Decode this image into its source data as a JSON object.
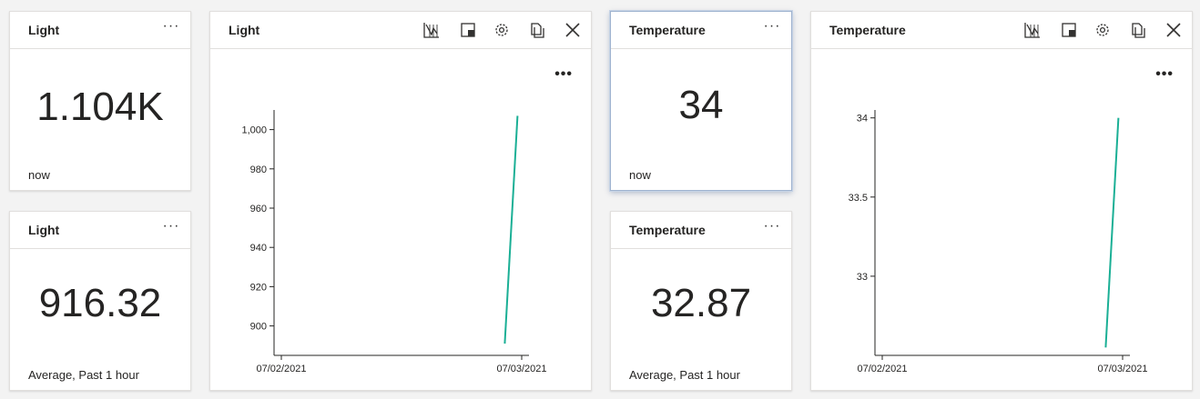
{
  "tiles": {
    "light_current": {
      "title": "Light",
      "value": "1.104K",
      "subtitle": "now",
      "more": "···"
    },
    "light_average": {
      "title": "Light",
      "value": "916.32",
      "subtitle": "Average, Past 1 hour",
      "more": "···"
    },
    "light_chart": {
      "title": "Light",
      "more": "•••"
    },
    "temp_current": {
      "title": "Temperature",
      "value": "34",
      "subtitle": "now",
      "more": "···"
    },
    "temp_average": {
      "title": "Temperature",
      "value": "32.87",
      "subtitle": "Average, Past 1 hour",
      "more": "···"
    },
    "temp_chart": {
      "title": "Temperature",
      "more": "•••"
    }
  },
  "toolbar_icons": [
    "chart-type-icon",
    "tile-size-icon",
    "settings-icon",
    "copy-icon",
    "close-icon"
  ],
  "chart_data": [
    {
      "type": "line",
      "x": [
        "07/02/2021",
        "07/03/2021"
      ],
      "series": [
        {
          "color": "#1aaf95",
          "points": [
            {
              "t": 0.905,
              "y": 891
            },
            {
              "t": 0.955,
              "y": 1007
            }
          ]
        }
      ],
      "yticks": [
        900,
        920,
        940,
        960,
        980,
        1000
      ],
      "ytick_labels": [
        "900",
        "920",
        "940",
        "960",
        "980",
        "1,000"
      ],
      "ylim": [
        885,
        1010
      ],
      "xtick_labels": [
        "07/02/2021",
        "07/03/2021"
      ],
      "grid": false
    },
    {
      "type": "line",
      "x": [
        "07/02/2021",
        "07/03/2021"
      ],
      "series": [
        {
          "color": "#1aaf95",
          "points": [
            {
              "t": 0.905,
              "y": 32.55
            },
            {
              "t": 0.955,
              "y": 34
            }
          ]
        }
      ],
      "yticks": [
        33,
        33.5,
        34
      ],
      "ytick_labels": [
        "33",
        "33.5",
        "34"
      ],
      "ylim": [
        32.5,
        34.05
      ],
      "xtick_labels": [
        "07/02/2021",
        "07/03/2021"
      ],
      "grid": false
    }
  ]
}
